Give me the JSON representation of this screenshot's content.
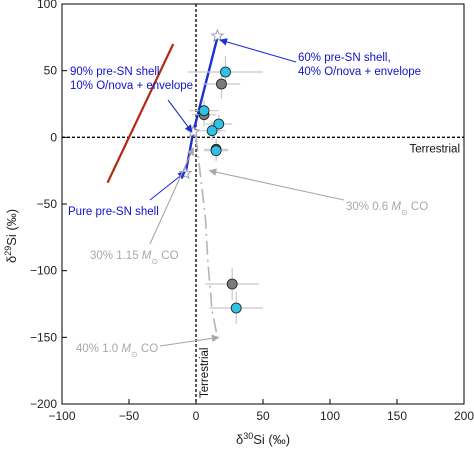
{
  "chart_data": {
    "type": "scatter",
    "title": "",
    "xlabel": {
      "prefix": "δ",
      "sup": "30",
      "main": "Si (‰)"
    },
    "ylabel": {
      "prefix": "δ",
      "sup": "29",
      "main": "Si (‰)"
    },
    "xlim": [
      -100,
      200
    ],
    "ylim": [
      -200,
      100
    ],
    "xticks": [
      -100,
      -50,
      0,
      50,
      100,
      150,
      200
    ],
    "yticks": [
      -200,
      -150,
      -100,
      -50,
      0,
      50,
      100
    ],
    "grid": false,
    "reference_lines": [
      {
        "orientation": "horizontal",
        "value": 0,
        "label": "Terrestrial"
      },
      {
        "orientation": "vertical",
        "value": 0,
        "label": "Terrestrial"
      }
    ],
    "colors": {
      "cyan_points": "#2cc3e6",
      "gray_points": "#7c7c7c",
      "mixing_line": "#1f2fd6",
      "red_line": "#b22a10",
      "gray_curves": "#b4b4b4",
      "error_bars": "#c8c8c8"
    },
    "series": [
      {
        "style": "cyan-circles",
        "points": [
          {
            "x": 22,
            "y": 49,
            "xerr": 28,
            "yerr": 12
          },
          {
            "x": 6,
            "y": 20,
            "xerr": 11,
            "yerr": 8
          },
          {
            "x": 17,
            "y": 10,
            "xerr": 10,
            "yerr": 7
          },
          {
            "x": 12,
            "y": 5,
            "xerr": 10,
            "yerr": 7
          },
          {
            "x": 15,
            "y": -10,
            "xerr": 9,
            "yerr": 8
          },
          {
            "x": 30,
            "y": -128,
            "xerr": 20,
            "yerr": 12
          }
        ]
      },
      {
        "style": "gray-circles",
        "points": [
          {
            "x": 19,
            "y": 40,
            "xerr": 14,
            "yerr": 11
          },
          {
            "x": 6,
            "y": 17,
            "xerr": 9,
            "yerr": 9
          },
          {
            "x": 15,
            "y": -9,
            "xerr": 9,
            "yerr": 8
          },
          {
            "x": 27,
            "y": -110,
            "xerr": 20,
            "yerr": 12
          }
        ]
      },
      {
        "style": "blue-mixing-line",
        "points": [
          {
            "x": -8,
            "y": -28
          },
          {
            "x": -2,
            "y": 4
          },
          {
            "x": 16,
            "y": 75
          }
        ]
      },
      {
        "style": "red-line",
        "points": [
          {
            "x": -66,
            "y": -34
          },
          {
            "x": -17,
            "y": 70
          }
        ]
      },
      {
        "style": "gray-dashed-curves",
        "points": [
          {
            "x": 0,
            "y": 0
          },
          {
            "x": 7,
            "y": -60
          },
          {
            "x": 9,
            "y": -95
          },
          {
            "x": 12,
            "y": -130
          },
          {
            "x": 16,
            "y": -150
          }
        ]
      }
    ],
    "markers": [
      {
        "x": 16,
        "y": 76,
        "style": "open-star"
      },
      {
        "x": -2,
        "y": 4,
        "style": "open-star"
      },
      {
        "x": -8,
        "y": -27,
        "style": "open-star"
      }
    ],
    "annotations": [
      {
        "color": "blue",
        "lines": [
          "90% pre-SN shell",
          "10% O/nova + envelope"
        ],
        "arrow_to": {
          "x": -3,
          "y": 4
        }
      },
      {
        "color": "blue",
        "lines": [
          "60% pre-SN shell,",
          "40% O/nova + envelope"
        ],
        "arrow_to": {
          "x": 18,
          "y": 73
        }
      },
      {
        "color": "blue",
        "lines": [
          "Pure pre-SN shell"
        ],
        "arrow_to": {
          "x": -8,
          "y": -26
        }
      },
      {
        "color": "gray",
        "prefix": "30% 0.6 ",
        "sub": "⊙",
        "suffix": " CO",
        "arrow_to": {
          "x": 10,
          "y": -25
        }
      },
      {
        "color": "gray",
        "prefix": "30% 1.15 ",
        "sub": "⊙",
        "suffix": " CO",
        "arrow_to": {
          "x": -2,
          "y": -8
        }
      },
      {
        "color": "gray",
        "prefix": "40% 1.0 ",
        "sub": "⊙",
        "suffix": " CO",
        "arrow_to": {
          "x": 17,
          "y": -150
        }
      }
    ]
  }
}
